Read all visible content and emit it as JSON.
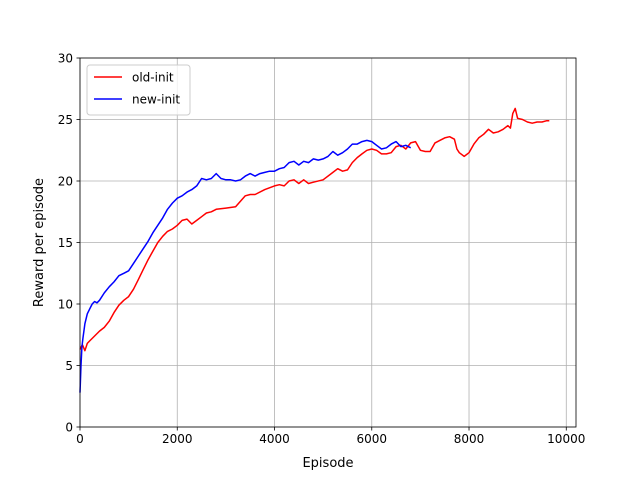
{
  "chart_data": {
    "type": "line",
    "xlabel": "Episode",
    "ylabel": "Reward per episode",
    "xlim": [
      0,
      10200
    ],
    "ylim": [
      0,
      30
    ],
    "x_ticks": [
      0,
      2000,
      4000,
      6000,
      8000,
      10000
    ],
    "x_tick_labels": [
      "0",
      "2000",
      "4000",
      "6000",
      "8000",
      "10000"
    ],
    "y_ticks": [
      0,
      5,
      10,
      15,
      20,
      25,
      30
    ],
    "y_tick_labels": [
      "0",
      "5",
      "10",
      "15",
      "20",
      "25",
      "30"
    ],
    "grid": true,
    "legend_position": "top-left",
    "series": [
      {
        "name": "old-init",
        "color": "#ff0000",
        "x": [
          0,
          50,
          100,
          150,
          200,
          300,
          400,
          500,
          600,
          700,
          800,
          900,
          1000,
          1100,
          1200,
          1300,
          1400,
          1500,
          1600,
          1700,
          1800,
          1900,
          2000,
          2100,
          2200,
          2300,
          2400,
          2500,
          2600,
          2700,
          2800,
          3000,
          3200,
          3400,
          3500,
          3600,
          3800,
          4000,
          4100,
          4200,
          4300,
          4400,
          4500,
          4600,
          4700,
          4800,
          5000,
          5200,
          5300,
          5400,
          5500,
          5600,
          5700,
          5800,
          5900,
          6000,
          6100,
          6200,
          6300,
          6400,
          6500,
          6600,
          6700,
          6800,
          6900,
          7000,
          7100,
          7200,
          7300,
          7400,
          7500,
          7600,
          7700,
          7750,
          7800,
          7900,
          8000,
          8100,
          8200,
          8300,
          8400,
          8500,
          8600,
          8700,
          8800,
          8850,
          8900,
          8950,
          9000,
          9100,
          9200,
          9300,
          9400,
          9500,
          9600,
          9650
        ],
        "y": [
          6.3,
          6.7,
          6.2,
          6.8,
          7.0,
          7.4,
          7.8,
          8.1,
          8.6,
          9.3,
          9.9,
          10.3,
          10.6,
          11.2,
          12.0,
          12.8,
          13.6,
          14.3,
          15.0,
          15.5,
          15.9,
          16.1,
          16.4,
          16.8,
          16.9,
          16.5,
          16.8,
          17.1,
          17.4,
          17.5,
          17.7,
          17.8,
          17.9,
          18.8,
          18.9,
          18.9,
          19.3,
          19.6,
          19.7,
          19.6,
          20.0,
          20.1,
          19.8,
          20.1,
          19.8,
          19.9,
          20.1,
          20.7,
          21.0,
          20.8,
          20.9,
          21.5,
          21.9,
          22.2,
          22.5,
          22.6,
          22.5,
          22.2,
          22.2,
          22.3,
          22.8,
          22.9,
          22.6,
          23.1,
          23.2,
          22.5,
          22.4,
          22.4,
          23.1,
          23.3,
          23.5,
          23.6,
          23.4,
          22.6,
          22.3,
          22.0,
          22.3,
          23.0,
          23.5,
          23.8,
          24.2,
          23.9,
          24.0,
          24.2,
          24.5,
          24.3,
          25.5,
          25.9,
          25.1,
          25.0,
          24.8,
          24.7,
          24.8,
          24.8,
          24.9,
          24.9
        ]
      },
      {
        "name": "new-init",
        "color": "#0000ff",
        "x": [
          0,
          20,
          40,
          60,
          80,
          100,
          150,
          200,
          250,
          300,
          350,
          400,
          500,
          600,
          700,
          800,
          900,
          1000,
          1100,
          1200,
          1300,
          1400,
          1500,
          1600,
          1700,
          1800,
          1900,
          2000,
          2100,
          2200,
          2300,
          2400,
          2500,
          2600,
          2700,
          2800,
          2900,
          3000,
          3100,
          3200,
          3300,
          3400,
          3500,
          3600,
          3700,
          3800,
          3900,
          4000,
          4100,
          4200,
          4300,
          4400,
          4500,
          4600,
          4700,
          4800,
          4900,
          5000,
          5100,
          5200,
          5300,
          5400,
          5500,
          5600,
          5700,
          5800,
          5900,
          6000,
          6100,
          6200,
          6300,
          6400,
          6500,
          6600,
          6700,
          6800
        ],
        "y": [
          2.8,
          5.0,
          6.5,
          7.2,
          7.8,
          8.4,
          9.2,
          9.6,
          10.0,
          10.2,
          10.1,
          10.3,
          10.9,
          11.4,
          11.8,
          12.3,
          12.5,
          12.7,
          13.3,
          13.9,
          14.5,
          15.1,
          15.8,
          16.4,
          17.0,
          17.7,
          18.2,
          18.6,
          18.8,
          19.1,
          19.3,
          19.6,
          20.2,
          20.1,
          20.2,
          20.6,
          20.2,
          20.1,
          20.1,
          20.0,
          20.1,
          20.4,
          20.6,
          20.4,
          20.6,
          20.7,
          20.8,
          20.8,
          21.0,
          21.1,
          21.5,
          21.6,
          21.3,
          21.6,
          21.5,
          21.8,
          21.7,
          21.8,
          22.0,
          22.4,
          22.1,
          22.3,
          22.6,
          23.0,
          23.0,
          23.2,
          23.3,
          23.2,
          22.9,
          22.6,
          22.7,
          23.0,
          23.2,
          22.8,
          22.9,
          22.7
        ]
      }
    ]
  }
}
